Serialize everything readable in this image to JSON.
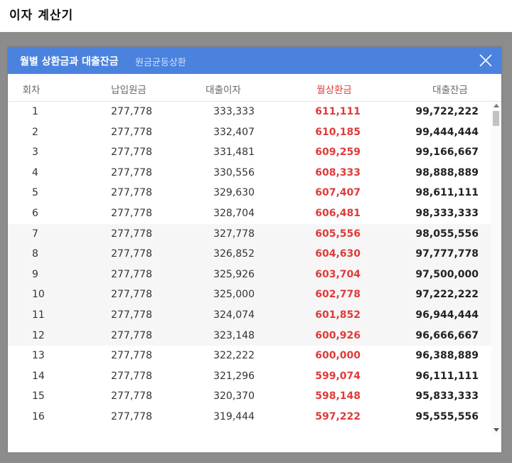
{
  "page": {
    "title": "이자 계산기"
  },
  "modal": {
    "title": "월별 상환금과 대출잔금",
    "subtitle": "원금균등상환",
    "columns": {
      "no": "회차",
      "principal": "납입원금",
      "interest": "대출이자",
      "monthly": "월상환금",
      "balance": "대출잔금"
    },
    "colors": {
      "header": "#4a82de",
      "monthly": "#e03a3a"
    },
    "close_icon": "close-icon",
    "rows": [
      {
        "no": "1",
        "principal": "277,778",
        "interest": "333,333",
        "monthly": "611,111",
        "balance": "99,722,222"
      },
      {
        "no": "2",
        "principal": "277,778",
        "interest": "332,407",
        "monthly": "610,185",
        "balance": "99,444,444"
      },
      {
        "no": "3",
        "principal": "277,778",
        "interest": "331,481",
        "monthly": "609,259",
        "balance": "99,166,667"
      },
      {
        "no": "4",
        "principal": "277,778",
        "interest": "330,556",
        "monthly": "608,333",
        "balance": "98,888,889"
      },
      {
        "no": "5",
        "principal": "277,778",
        "interest": "329,630",
        "monthly": "607,407",
        "balance": "98,611,111"
      },
      {
        "no": "6",
        "principal": "277,778",
        "interest": "328,704",
        "monthly": "606,481",
        "balance": "98,333,333"
      },
      {
        "no": "7",
        "principal": "277,778",
        "interest": "327,778",
        "monthly": "605,556",
        "balance": "98,055,556"
      },
      {
        "no": "8",
        "principal": "277,778",
        "interest": "326,852",
        "monthly": "604,630",
        "balance": "97,777,778"
      },
      {
        "no": "9",
        "principal": "277,778",
        "interest": "325,926",
        "monthly": "603,704",
        "balance": "97,500,000"
      },
      {
        "no": "10",
        "principal": "277,778",
        "interest": "325,000",
        "monthly": "602,778",
        "balance": "97,222,222"
      },
      {
        "no": "11",
        "principal": "277,778",
        "interest": "324,074",
        "monthly": "601,852",
        "balance": "96,944,444"
      },
      {
        "no": "12",
        "principal": "277,778",
        "interest": "323,148",
        "monthly": "600,926",
        "balance": "96,666,667"
      },
      {
        "no": "13",
        "principal": "277,778",
        "interest": "322,222",
        "monthly": "600,000",
        "balance": "96,388,889"
      },
      {
        "no": "14",
        "principal": "277,778",
        "interest": "321,296",
        "monthly": "599,074",
        "balance": "96,111,111"
      },
      {
        "no": "15",
        "principal": "277,778",
        "interest": "320,370",
        "monthly": "598,148",
        "balance": "95,833,333"
      },
      {
        "no": "16",
        "principal": "277,778",
        "interest": "319,444",
        "monthly": "597,222",
        "balance": "95,555,556"
      }
    ]
  }
}
